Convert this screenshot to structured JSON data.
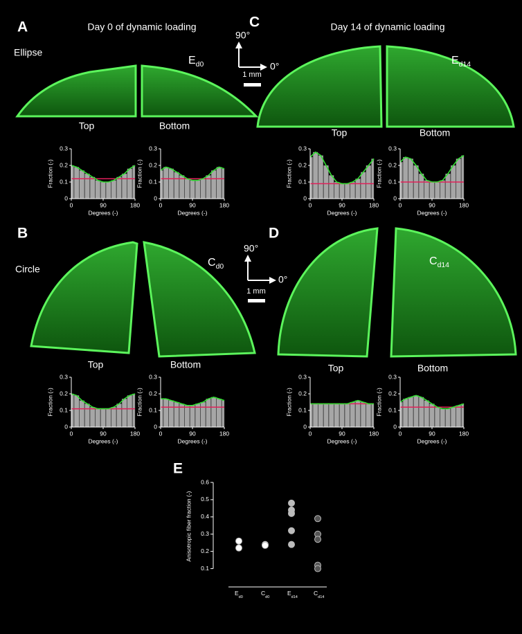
{
  "panel_labels": [
    "A",
    "B",
    "C",
    "D",
    "E"
  ],
  "headers": [
    "Day 0 of dynamic loading",
    "Day 14 of dynamic loading"
  ],
  "shape_labels": [
    "Ellipse",
    "Circle"
  ],
  "image_labels": [
    "Ed0",
    "Cd0",
    "Ed14",
    "Cd14"
  ],
  "section_labels": [
    "Top",
    "Bottom"
  ],
  "compass": {
    "up": "90°",
    "right": "0°",
    "scale": "1 mm"
  },
  "chart_data": [
    {
      "type": "bar",
      "x": [
        0,
        15,
        30,
        45,
        60,
        75,
        90,
        105,
        120,
        135,
        150,
        165,
        180
      ],
      "values": [
        0.2,
        0.19,
        0.17,
        0.15,
        0.13,
        0.11,
        0.1,
        0.1,
        0.11,
        0.13,
        0.15,
        0.18,
        0.2
      ],
      "mean": 0.12,
      "color": "#33dd33",
      "bar_color": "#a6a6a6",
      "mean_color": "#e0205a",
      "xlabel": "Degrees (-)",
      "ylabel": "Fraction (-)",
      "xlim": [
        0,
        180
      ],
      "xticks": [
        0,
        90,
        180
      ],
      "ylim": [
        0,
        0.3
      ],
      "yticks": [
        0,
        0.1,
        0.2,
        0.3
      ]
    },
    {
      "type": "bar",
      "x": [
        0,
        15,
        30,
        45,
        60,
        75,
        90,
        105,
        120,
        135,
        150,
        165,
        180
      ],
      "values": [
        0.17,
        0.19,
        0.18,
        0.16,
        0.14,
        0.12,
        0.11,
        0.11,
        0.12,
        0.14,
        0.17,
        0.19,
        0.18
      ],
      "mean": 0.12,
      "color": "#33dd33",
      "bar_color": "#a6a6a6",
      "mean_color": "#e0205a",
      "xlabel": "Degrees (-)",
      "ylabel": "Fraction (-)",
      "xlim": [
        0,
        180
      ],
      "xticks": [
        0,
        90,
        180
      ],
      "ylim": [
        0,
        0.3
      ],
      "yticks": [
        0,
        0.1,
        0.2,
        0.3
      ]
    },
    {
      "type": "bar",
      "x": [
        0,
        15,
        30,
        45,
        60,
        75,
        90,
        105,
        120,
        135,
        150,
        165,
        180
      ],
      "values": [
        0.25,
        0.28,
        0.26,
        0.2,
        0.14,
        0.1,
        0.09,
        0.09,
        0.1,
        0.12,
        0.16,
        0.2,
        0.24
      ],
      "mean": 0.09,
      "color": "#33dd33",
      "bar_color": "#a6a6a6",
      "mean_color": "#e0205a",
      "xlabel": "Degrees (-)",
      "ylabel": "Fraction (-)",
      "xlim": [
        0,
        180
      ],
      "xticks": [
        0,
        90,
        180
      ],
      "ylim": [
        0,
        0.3
      ],
      "yticks": [
        0,
        0.1,
        0.2,
        0.3
      ]
    },
    {
      "type": "bar",
      "x": [
        0,
        15,
        30,
        45,
        60,
        75,
        90,
        105,
        120,
        135,
        150,
        165,
        180
      ],
      "values": [
        0.22,
        0.25,
        0.24,
        0.2,
        0.15,
        0.11,
        0.1,
        0.1,
        0.11,
        0.15,
        0.2,
        0.24,
        0.26
      ],
      "mean": 0.1,
      "color": "#33dd33",
      "bar_color": "#a6a6a6",
      "mean_color": "#e0205a",
      "xlabel": "Degrees (-)",
      "ylabel": "Fraction (-)",
      "xlim": [
        0,
        180
      ],
      "xticks": [
        0,
        90,
        180
      ],
      "ylim": [
        0,
        0.3
      ],
      "yticks": [
        0,
        0.1,
        0.2,
        0.3
      ]
    },
    {
      "type": "bar",
      "x": [
        0,
        15,
        30,
        45,
        60,
        75,
        90,
        105,
        120,
        135,
        150,
        165,
        180
      ],
      "values": [
        0.2,
        0.19,
        0.16,
        0.14,
        0.12,
        0.11,
        0.11,
        0.11,
        0.12,
        0.14,
        0.17,
        0.19,
        0.2
      ],
      "mean": 0.11,
      "color": "#33dd33",
      "bar_color": "#a6a6a6",
      "mean_color": "#e0205a",
      "xlabel": "Degrees (-)",
      "ylabel": "Fraction (-)",
      "xlim": [
        0,
        180
      ],
      "xticks": [
        0,
        90,
        180
      ],
      "ylim": [
        0,
        0.3
      ],
      "yticks": [
        0,
        0.1,
        0.2,
        0.3
      ]
    },
    {
      "type": "bar",
      "x": [
        0,
        15,
        30,
        45,
        60,
        75,
        90,
        105,
        120,
        135,
        150,
        165,
        180
      ],
      "values": [
        0.17,
        0.17,
        0.16,
        0.15,
        0.14,
        0.13,
        0.13,
        0.14,
        0.15,
        0.17,
        0.18,
        0.17,
        0.16
      ],
      "mean": 0.12,
      "color": "#33dd33",
      "bar_color": "#a6a6a6",
      "mean_color": "#e0205a",
      "xlabel": "Degrees (-)",
      "ylabel": "Fraction (-)",
      "xlim": [
        0,
        180
      ],
      "xticks": [
        0,
        90,
        180
      ],
      "ylim": [
        0,
        0.3
      ],
      "yticks": [
        0,
        0.1,
        0.2,
        0.3
      ]
    },
    {
      "type": "bar",
      "x": [
        0,
        15,
        30,
        45,
        60,
        75,
        90,
        105,
        120,
        135,
        150,
        165,
        180
      ],
      "values": [
        0.14,
        0.14,
        0.14,
        0.14,
        0.14,
        0.14,
        0.14,
        0.14,
        0.15,
        0.16,
        0.15,
        0.14,
        0.14
      ],
      "mean": 0.14,
      "color": "#33dd33",
      "bar_color": "#a6a6a6",
      "mean_color": "#e0205a",
      "xlabel": "Degrees (-)",
      "ylabel": "Fraction (-)",
      "xlim": [
        0,
        180
      ],
      "xticks": [
        0,
        90,
        180
      ],
      "ylim": [
        0,
        0.3
      ],
      "yticks": [
        0,
        0.1,
        0.2,
        0.3
      ]
    },
    {
      "type": "bar",
      "x": [
        0,
        15,
        30,
        45,
        60,
        75,
        90,
        105,
        120,
        135,
        150,
        165,
        180
      ],
      "values": [
        0.15,
        0.17,
        0.18,
        0.19,
        0.18,
        0.16,
        0.14,
        0.12,
        0.11,
        0.11,
        0.12,
        0.13,
        0.14
      ],
      "mean": 0.12,
      "color": "#33dd33",
      "bar_color": "#a6a6a6",
      "mean_color": "#e0205a",
      "xlabel": "Degrees (-)",
      "ylabel": "Fraction (-)",
      "xlim": [
        0,
        180
      ],
      "xticks": [
        0,
        90,
        180
      ],
      "ylim": [
        0,
        0.3
      ],
      "yticks": [
        0,
        0.1,
        0.2,
        0.3
      ]
    },
    {
      "type": "scatter",
      "categories": [
        "Ed0",
        "Cd0",
        "Ed14",
        "Cd14"
      ],
      "values": [
        [
          0.26,
          0.22
        ],
        [
          0.24,
          0.235
        ],
        [
          0.48,
          0.44,
          0.42,
          0.32,
          0.24
        ],
        [
          0.39,
          0.3,
          0.27,
          0.12,
          0.1
        ]
      ],
      "colors": [
        "#ffffff",
        "#ffffff",
        "#bbbbbb",
        "#555555"
      ],
      "ylabel": "Anisotropic fiber fraction (-)",
      "ylim": [
        0.05,
        0.6
      ],
      "yticks": [
        0.1,
        0.2,
        0.3,
        0.4,
        0.5,
        0.6
      ]
    }
  ]
}
